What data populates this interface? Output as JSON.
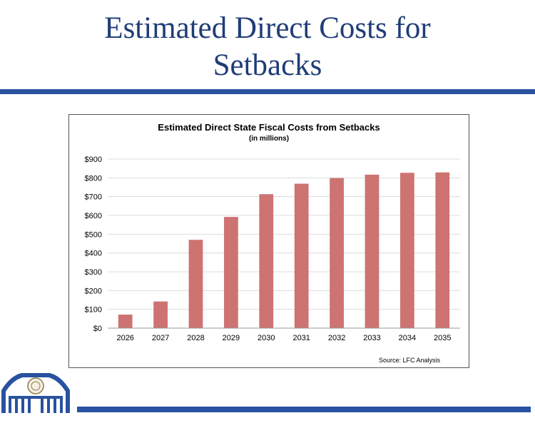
{
  "slide": {
    "title_line1": "Estimated Direct Costs for",
    "title_line2": "Setbacks"
  },
  "colors": {
    "accent_blue": "#2952a0",
    "title_blue": "#1f3d77",
    "bar": "#cd7372"
  },
  "chart_data": {
    "type": "bar",
    "title": "Estimated Direct State Fiscal Costs from Setbacks",
    "subtitle": "(in millions)",
    "categories": [
      "2026",
      "2027",
      "2028",
      "2029",
      "2030",
      "2031",
      "2032",
      "2033",
      "2034",
      "2035"
    ],
    "values": [
      72,
      142,
      470,
      592,
      713,
      769,
      799,
      817,
      827,
      829
    ],
    "yticks": [
      "$0",
      "$100",
      "$200",
      "$300",
      "$400",
      "$500",
      "$600",
      "$700",
      "$800",
      "$900"
    ],
    "ylim": [
      0,
      900
    ],
    "xlabel": "",
    "ylabel": "",
    "grid": true,
    "legend": "none",
    "source": "Source: LFC Analysis"
  },
  "logo": {
    "icon": "capitol-building-logo"
  }
}
